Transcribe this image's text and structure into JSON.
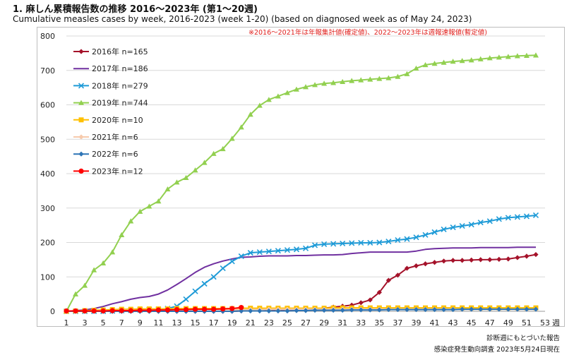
{
  "title": "1. 麻しん累積報告数の推移  2016〜2023年 (第1〜20週)",
  "subtitle": "Cumulative measles cases by week, 2016-2023 (week 1-20)  (based on diagnosed week as of May 24, 2023)",
  "note": "※2016〜2021年は年報集計値(確定値)、2022〜2023年は週報速報値(暫定値)",
  "footer_line1": "診断週にもとづいた報告",
  "footer_line2": "感染症発生動向調査 2023年5月24日現在",
  "chart_data": {
    "type": "line",
    "x_unit": "週",
    "x_ticks": [
      1,
      3,
      5,
      7,
      9,
      11,
      13,
      15,
      17,
      19,
      21,
      23,
      25,
      27,
      29,
      31,
      33,
      35,
      37,
      39,
      41,
      43,
      45,
      47,
      49,
      51,
      53
    ],
    "y_ticks": [
      0,
      100,
      200,
      300,
      400,
      500,
      600,
      700,
      800
    ],
    "ylim": [
      0,
      800
    ],
    "xlim": [
      1,
      53
    ],
    "legend_position": "top-left",
    "series": [
      {
        "name": "2016年 n=165",
        "color": "#a5122a",
        "marker": "diamond",
        "values": [
          0,
          0,
          0,
          0,
          0,
          0,
          0,
          0,
          0,
          0,
          0,
          0,
          0,
          0,
          0,
          0,
          0,
          0,
          0,
          1,
          2,
          2,
          3,
          3,
          4,
          5,
          6,
          7,
          9,
          12,
          15,
          18,
          25,
          33,
          55,
          90,
          105,
          125,
          132,
          138,
          142,
          146,
          148,
          148,
          149,
          150,
          150,
          151,
          152,
          156,
          160,
          165
        ]
      },
      {
        "name": "2017年 n=186",
        "color": "#7030a0",
        "marker": "none",
        "values": [
          0,
          2,
          4,
          8,
          14,
          22,
          28,
          35,
          40,
          43,
          50,
          62,
          78,
          95,
          113,
          128,
          138,
          146,
          152,
          157,
          158,
          160,
          161,
          161,
          161,
          162,
          162,
          163,
          164,
          164,
          165,
          168,
          170,
          172,
          172,
          172,
          172,
          172,
          175,
          180,
          182,
          183,
          184,
          184,
          184,
          185,
          185,
          185,
          185,
          186,
          186,
          186
        ]
      },
      {
        "name": "2018年 n=279",
        "color": "#1f9bd7",
        "marker": "x",
        "values": [
          0,
          0,
          0,
          0,
          0,
          1,
          2,
          3,
          4,
          5,
          6,
          8,
          15,
          35,
          58,
          80,
          100,
          125,
          145,
          160,
          170,
          172,
          174,
          176,
          178,
          180,
          183,
          192,
          195,
          196,
          197,
          198,
          199,
          199,
          200,
          203,
          207,
          210,
          215,
          222,
          230,
          238,
          244,
          248,
          252,
          258,
          262,
          268,
          272,
          274,
          276,
          279
        ]
      },
      {
        "name": "2019年 n=744",
        "color": "#92d050",
        "marker": "triangle",
        "values": [
          0,
          50,
          75,
          120,
          140,
          172,
          222,
          262,
          290,
          305,
          320,
          355,
          375,
          388,
          410,
          432,
          458,
          472,
          502,
          535,
          572,
          598,
          615,
          625,
          635,
          645,
          652,
          658,
          662,
          664,
          667,
          670,
          672,
          674,
          676,
          678,
          682,
          690,
          706,
          716,
          720,
          723,
          726,
          728,
          730,
          733,
          736,
          738,
          740,
          742,
          743,
          744
        ]
      },
      {
        "name": "2020年 n=10",
        "color": "#ffc000",
        "marker": "square",
        "values": [
          0,
          1,
          2,
          3,
          4,
          5,
          6,
          6,
          7,
          7,
          7,
          7,
          8,
          8,
          8,
          8,
          8,
          8,
          8,
          9,
          9,
          9,
          9,
          9,
          9,
          9,
          9,
          9,
          9,
          10,
          10,
          10,
          10,
          10,
          10,
          10,
          10,
          10,
          10,
          10,
          10,
          10,
          10,
          10,
          10,
          10,
          10,
          10,
          10,
          10,
          10,
          10
        ]
      },
      {
        "name": "2021年 n=6",
        "color": "#f7caac",
        "marker": "diamond",
        "values": [
          0,
          0,
          1,
          1,
          2,
          2,
          3,
          3,
          3,
          4,
          4,
          4,
          4,
          5,
          5,
          5,
          5,
          5,
          5,
          5,
          5,
          5,
          6,
          6,
          6,
          6,
          6,
          6,
          6,
          6,
          6,
          6,
          6,
          6,
          6,
          6,
          6,
          6,
          6,
          6,
          6,
          6,
          6,
          6,
          6,
          6,
          6,
          6,
          6,
          6,
          6,
          6
        ]
      },
      {
        "name": "2022年 n=6",
        "color": "#2e75b6",
        "marker": "diamond",
        "values": [
          0,
          0,
          0,
          0,
          0,
          0,
          0,
          0,
          0,
          0,
          0,
          0,
          0,
          0,
          0,
          0,
          0,
          0,
          0,
          1,
          1,
          1,
          1,
          1,
          1,
          2,
          2,
          3,
          3,
          3,
          3,
          4,
          4,
          4,
          4,
          5,
          5,
          5,
          5,
          5,
          5,
          5,
          5,
          6,
          6,
          6,
          6,
          6,
          6,
          6,
          6,
          6
        ]
      },
      {
        "name": "2023年 n=12",
        "color": "#ff0000",
        "marker": "circle",
        "values": [
          1,
          1,
          1,
          1,
          1,
          2,
          2,
          2,
          3,
          3,
          4,
          4,
          5,
          5,
          6,
          6,
          6,
          7,
          8,
          11
        ]
      }
    ]
  }
}
